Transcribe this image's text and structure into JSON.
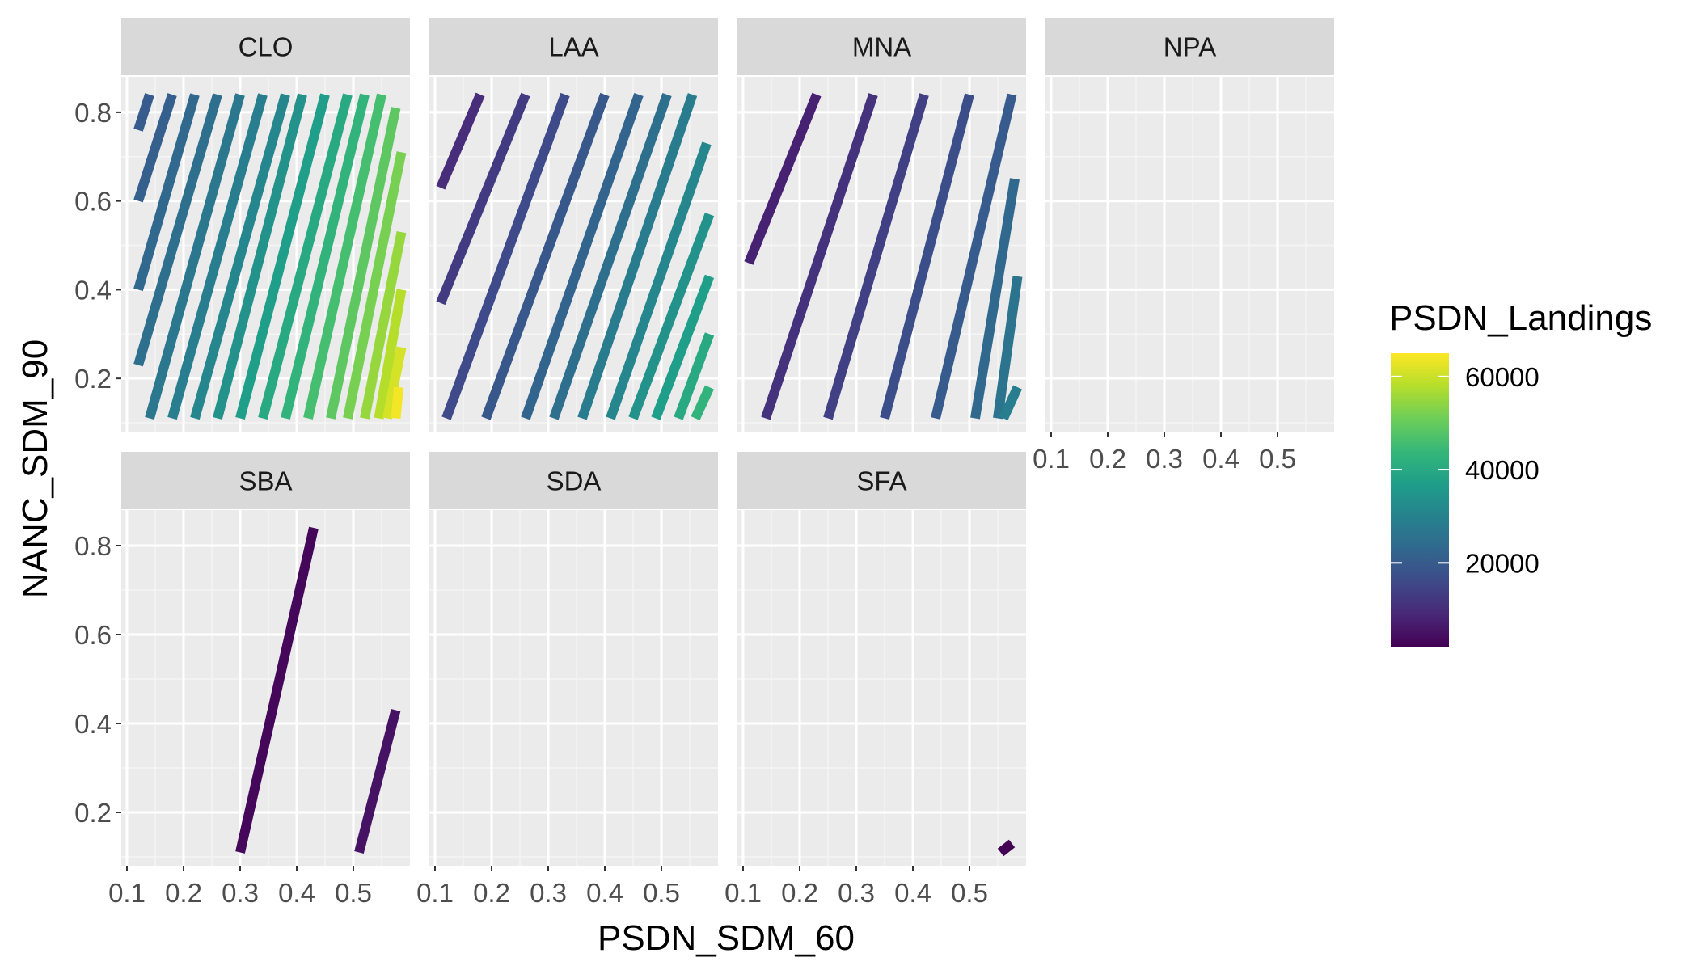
{
  "chart_data": {
    "type": "contour",
    "xlabel": "PSDN_SDM_60",
    "ylabel": "NANC_SDM_90",
    "xlim": [
      0.09,
      0.6
    ],
    "ylim": [
      0.08,
      0.88
    ],
    "x_ticks": [
      0.1,
      0.2,
      0.3,
      0.4,
      0.5
    ],
    "x_tick_labels": [
      "0.1",
      "0.2",
      "0.3",
      "0.4",
      "0.5"
    ],
    "y_ticks": [
      0.2,
      0.4,
      0.6,
      0.8
    ],
    "y_tick_labels": [
      "0.2",
      "0.4",
      "0.6",
      "0.8"
    ],
    "legend": {
      "title": "PSDN_Landings",
      "position": "right",
      "min": 2000,
      "max": 65000,
      "breaks": [
        20000,
        40000,
        60000
      ],
      "break_labels": [
        "20000",
        "40000",
        "60000"
      ],
      "palette": [
        "#440154",
        "#482878",
        "#3e4a89",
        "#31688e",
        "#26828e",
        "#1f9e89",
        "#35b779",
        "#6ece58",
        "#b5de2b",
        "#fde725"
      ]
    },
    "panels": [
      {
        "name": "CLO",
        "contours": [
          {
            "level": 20000,
            "points": [
              [
                0.12,
                0.76
              ],
              [
                0.14,
                0.84
              ]
            ]
          },
          {
            "level": 21000,
            "points": [
              [
                0.12,
                0.6
              ],
              [
                0.18,
                0.84
              ]
            ]
          },
          {
            "level": 23000,
            "points": [
              [
                0.12,
                0.4
              ],
              [
                0.22,
                0.84
              ]
            ]
          },
          {
            "level": 25000,
            "points": [
              [
                0.12,
                0.23
              ],
              [
                0.26,
                0.84
              ]
            ]
          },
          {
            "level": 27000,
            "points": [
              [
                0.14,
                0.11
              ],
              [
                0.3,
                0.84
              ]
            ]
          },
          {
            "level": 29000,
            "points": [
              [
                0.18,
                0.11
              ],
              [
                0.34,
                0.84
              ]
            ]
          },
          {
            "level": 31000,
            "points": [
              [
                0.22,
                0.11
              ],
              [
                0.38,
                0.84
              ]
            ]
          },
          {
            "level": 34000,
            "points": [
              [
                0.26,
                0.11
              ],
              [
                0.41,
                0.84
              ]
            ]
          },
          {
            "level": 37000,
            "points": [
              [
                0.3,
                0.11
              ],
              [
                0.45,
                0.84
              ]
            ]
          },
          {
            "level": 40000,
            "points": [
              [
                0.34,
                0.11
              ],
              [
                0.49,
                0.84
              ]
            ]
          },
          {
            "level": 43000,
            "points": [
              [
                0.38,
                0.11
              ],
              [
                0.52,
                0.84
              ]
            ]
          },
          {
            "level": 46000,
            "points": [
              [
                0.42,
                0.11
              ],
              [
                0.55,
                0.84
              ]
            ]
          },
          {
            "level": 49000,
            "points": [
              [
                0.46,
                0.11
              ],
              [
                0.575,
                0.81
              ]
            ]
          },
          {
            "level": 52000,
            "points": [
              [
                0.49,
                0.11
              ],
              [
                0.585,
                0.71
              ]
            ]
          },
          {
            "level": 55000,
            "points": [
              [
                0.52,
                0.11
              ],
              [
                0.585,
                0.53
              ]
            ]
          },
          {
            "level": 58000,
            "points": [
              [
                0.545,
                0.11
              ],
              [
                0.585,
                0.4
              ]
            ]
          },
          {
            "level": 61000,
            "points": [
              [
                0.56,
                0.11
              ],
              [
                0.585,
                0.27
              ]
            ]
          },
          {
            "level": 64000,
            "points": [
              [
                0.575,
                0.11
              ],
              [
                0.58,
                0.18
              ]
            ]
          }
        ]
      },
      {
        "name": "LAA",
        "contours": [
          {
            "level": 10000,
            "points": [
              [
                0.11,
                0.63
              ],
              [
                0.18,
                0.84
              ]
            ]
          },
          {
            "level": 13000,
            "points": [
              [
                0.11,
                0.37
              ],
              [
                0.26,
                0.84
              ]
            ]
          },
          {
            "level": 16000,
            "points": [
              [
                0.12,
                0.11
              ],
              [
                0.33,
                0.84
              ]
            ]
          },
          {
            "level": 19000,
            "points": [
              [
                0.19,
                0.11
              ],
              [
                0.4,
                0.84
              ]
            ]
          },
          {
            "level": 22000,
            "points": [
              [
                0.26,
                0.11
              ],
              [
                0.46,
                0.84
              ]
            ]
          },
          {
            "level": 25000,
            "points": [
              [
                0.31,
                0.11
              ],
              [
                0.51,
                0.84
              ]
            ]
          },
          {
            "level": 28000,
            "points": [
              [
                0.36,
                0.11
              ],
              [
                0.555,
                0.84
              ]
            ]
          },
          {
            "level": 31000,
            "points": [
              [
                0.41,
                0.11
              ],
              [
                0.58,
                0.73
              ]
            ]
          },
          {
            "level": 34000,
            "points": [
              [
                0.45,
                0.11
              ],
              [
                0.585,
                0.57
              ]
            ]
          },
          {
            "level": 37000,
            "points": [
              [
                0.49,
                0.11
              ],
              [
                0.585,
                0.43
              ]
            ]
          },
          {
            "level": 40000,
            "points": [
              [
                0.53,
                0.11
              ],
              [
                0.585,
                0.3
              ]
            ]
          },
          {
            "level": 43000,
            "points": [
              [
                0.56,
                0.11
              ],
              [
                0.585,
                0.18
              ]
            ]
          }
        ]
      },
      {
        "name": "MNA",
        "contours": [
          {
            "level": 8000,
            "points": [
              [
                0.11,
                0.46
              ],
              [
                0.23,
                0.84
              ]
            ]
          },
          {
            "level": 11000,
            "points": [
              [
                0.14,
                0.11
              ],
              [
                0.33,
                0.84
              ]
            ]
          },
          {
            "level": 14000,
            "points": [
              [
                0.25,
                0.11
              ],
              [
                0.42,
                0.84
              ]
            ]
          },
          {
            "level": 17000,
            "points": [
              [
                0.35,
                0.11
              ],
              [
                0.5,
                0.84
              ]
            ]
          },
          {
            "level": 20000,
            "points": [
              [
                0.44,
                0.11
              ],
              [
                0.575,
                0.84
              ]
            ]
          },
          {
            "level": 23000,
            "points": [
              [
                0.51,
                0.11
              ],
              [
                0.58,
                0.65
              ]
            ]
          },
          {
            "level": 26000,
            "points": [
              [
                0.55,
                0.11
              ],
              [
                0.585,
                0.43
              ]
            ]
          },
          {
            "level": 29000,
            "points": [
              [
                0.56,
                0.11
              ],
              [
                0.585,
                0.18
              ]
            ]
          }
        ]
      },
      {
        "name": "NPA",
        "contours": []
      },
      {
        "name": "SBA",
        "contours": [
          {
            "level": 3000,
            "points": [
              [
                0.3,
                0.11
              ],
              [
                0.43,
                0.84
              ]
            ]
          },
          {
            "level": 5000,
            "points": [
              [
                0.51,
                0.11
              ],
              [
                0.575,
                0.43
              ]
            ]
          }
        ]
      },
      {
        "name": "SDA",
        "contours": []
      },
      {
        "name": "SFA",
        "contours": [
          {
            "level": 2000,
            "points": [
              [
                0.555,
                0.11
              ],
              [
                0.575,
                0.13
              ]
            ]
          }
        ]
      }
    ]
  }
}
